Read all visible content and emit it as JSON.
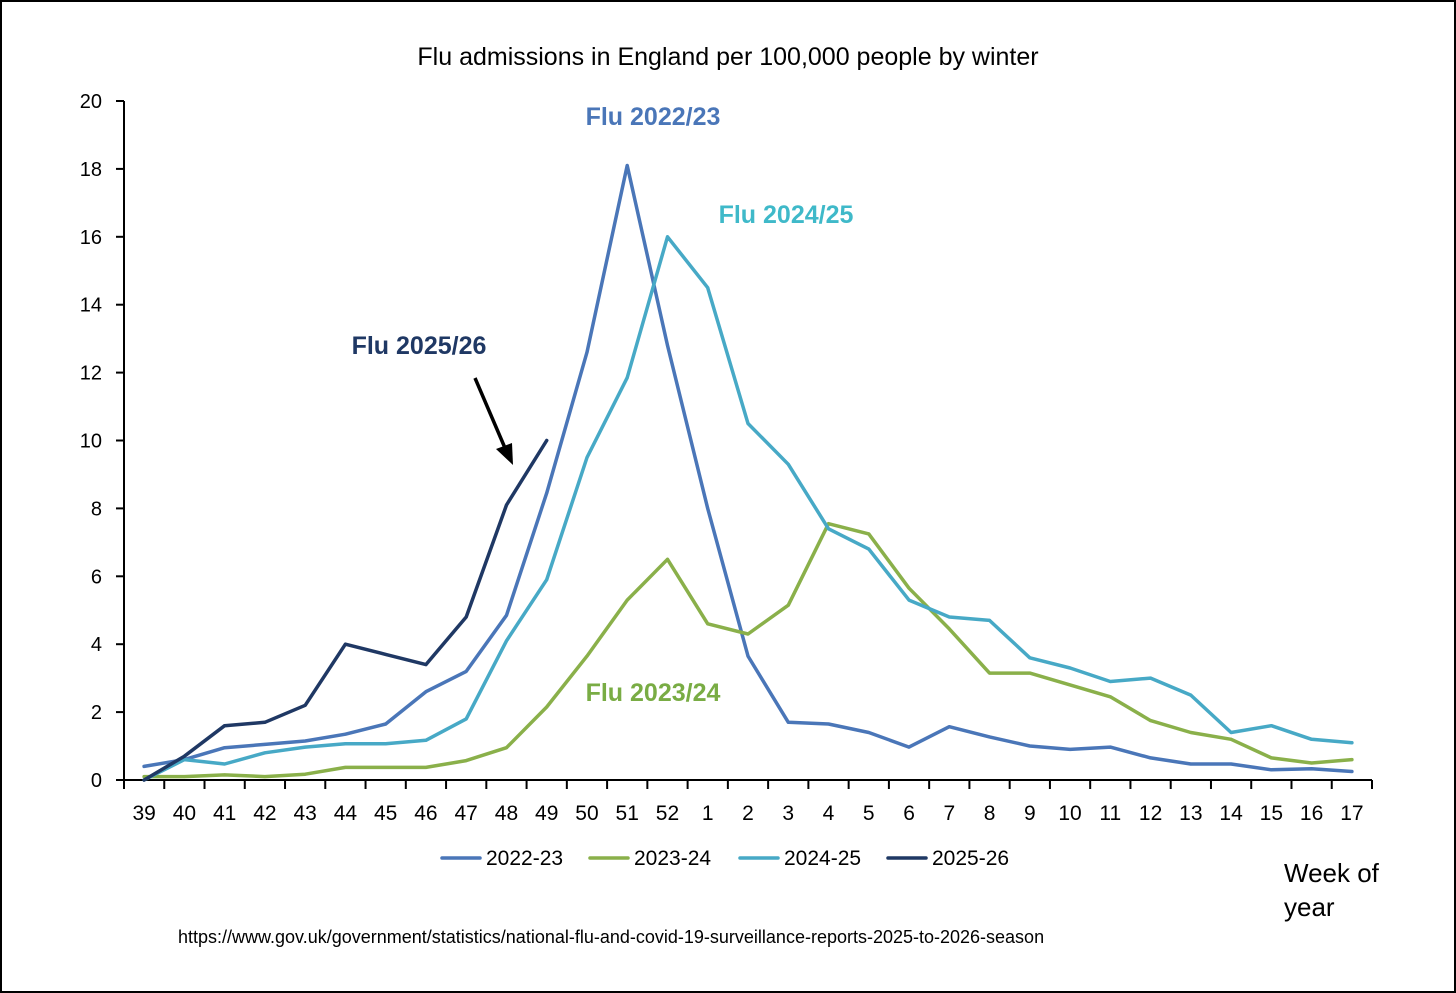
{
  "chart_data": {
    "type": "line",
    "title": "Flu admissions in England per 100,000 people by winter",
    "xlabel": "Week of year",
    "ylabel": "",
    "ylim": [
      0,
      20
    ],
    "yticks": [
      0,
      2,
      4,
      6,
      8,
      10,
      12,
      14,
      16,
      18,
      20
    ],
    "categories": [
      "39",
      "40",
      "41",
      "42",
      "43",
      "44",
      "45",
      "46",
      "47",
      "48",
      "49",
      "50",
      "51",
      "52",
      "1",
      "2",
      "3",
      "4",
      "5",
      "6",
      "7",
      "8",
      "9",
      "10",
      "11",
      "12",
      "13",
      "14",
      "15",
      "16",
      "17"
    ],
    "series": [
      {
        "name": "2022-23",
        "color": "#4a76b8",
        "values": [
          0.4,
          0.6,
          0.95,
          1.05,
          1.15,
          1.35,
          1.65,
          2.6,
          3.2,
          4.85,
          8.45,
          12.6,
          18.1,
          12.8,
          8.0,
          3.65,
          1.7,
          1.65,
          1.4,
          0.97,
          1.57,
          1.27,
          1.0,
          0.9,
          0.97,
          0.65,
          0.47,
          0.47,
          0.3,
          0.33,
          0.25
        ]
      },
      {
        "name": "2023-24",
        "color": "#8ab04a",
        "values": [
          0.1,
          0.1,
          0.15,
          0.1,
          0.17,
          0.37,
          0.37,
          0.37,
          0.57,
          0.95,
          2.15,
          3.65,
          5.3,
          6.5,
          4.6,
          4.3,
          5.15,
          7.55,
          7.25,
          5.65,
          4.45,
          3.15,
          3.15,
          2.8,
          2.45,
          1.75,
          1.4,
          1.2,
          0.65,
          0.5,
          0.6
        ]
      },
      {
        "name": "2024-25",
        "color": "#47a9c6",
        "values": [
          0.0,
          0.6,
          0.47,
          0.8,
          0.97,
          1.07,
          1.07,
          1.17,
          1.8,
          4.1,
          5.9,
          9.5,
          11.85,
          16.0,
          14.5,
          10.5,
          9.3,
          7.4,
          6.8,
          5.3,
          4.8,
          4.7,
          3.6,
          3.3,
          2.9,
          3.0,
          2.5,
          1.4,
          1.6,
          1.2,
          1.1
        ]
      },
      {
        "name": "2025-26",
        "color": "#1f3864",
        "values": [
          0.0,
          0.7,
          1.6,
          1.7,
          2.2,
          4.0,
          3.7,
          3.4,
          4.8,
          8.1,
          10.0,
          null,
          null,
          null,
          null,
          null,
          null,
          null,
          null,
          null,
          null,
          null,
          null,
          null,
          null,
          null,
          null,
          null,
          null,
          null,
          null
        ]
      }
    ],
    "annotations": [
      {
        "text": "Flu 2022/23",
        "color": "#4a76b8"
      },
      {
        "text": "Flu 2024/25",
        "color": "#3fb9c9"
      },
      {
        "text": "Flu 2025/26",
        "color": "#1f3864"
      },
      {
        "text": "Flu 2023/24",
        "color": "#79ac44"
      }
    ],
    "legend_position": "bottom"
  },
  "page": {
    "source": "https://www.gov.uk/government/statistics/national-flu-and-covid-19-surveillance-reports-2025-to-2026-season",
    "xaxis_title": "Week of year"
  }
}
